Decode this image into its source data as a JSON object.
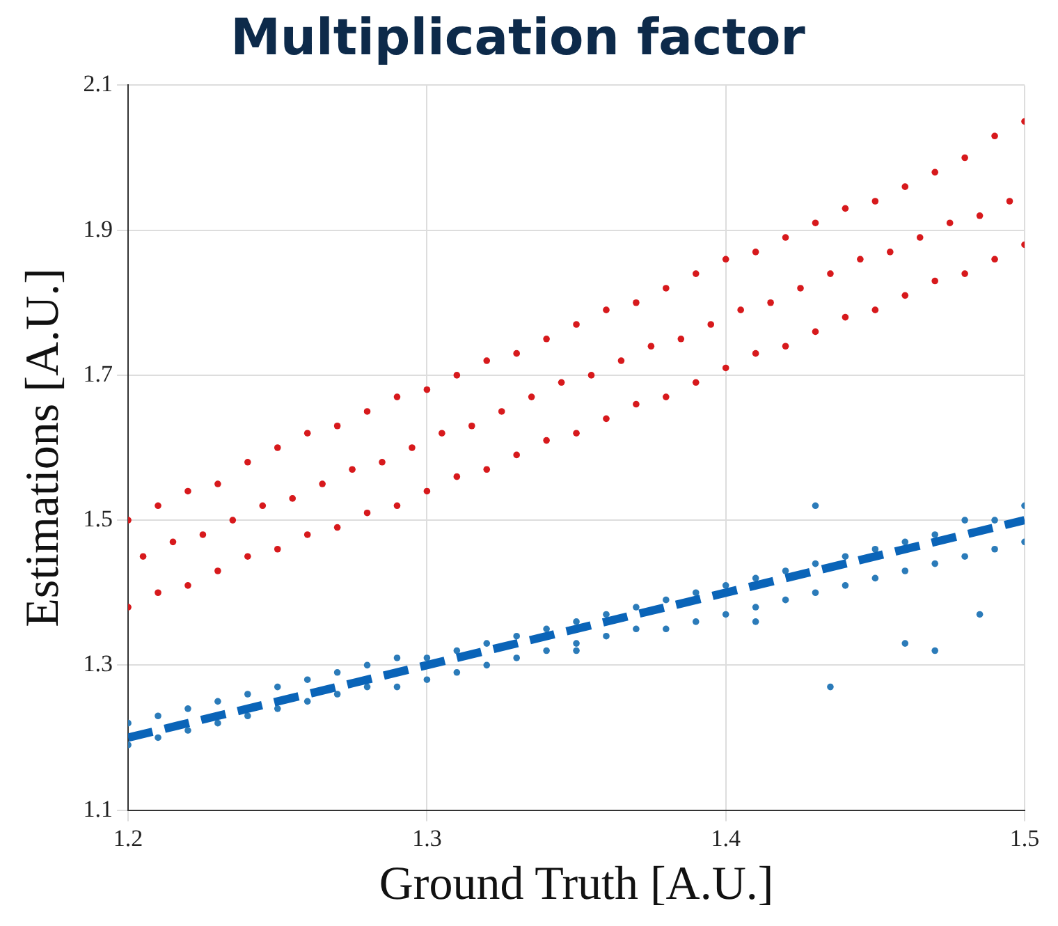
{
  "chart_data": {
    "type": "scatter",
    "title": "Multiplication factor",
    "xlabel": "Ground Truth [A.U.]",
    "ylabel": "Estimations [A.U.]",
    "xlim": [
      1.2,
      1.5
    ],
    "xticks": [
      1.2,
      1.3,
      1.4,
      1.5
    ],
    "ylim": [
      1.1,
      2.1
    ],
    "yticks": [
      1.1,
      1.3,
      1.5,
      1.7,
      1.9,
      2.1
    ],
    "grid": true,
    "legend": false,
    "marker": "circle",
    "series": [
      {
        "type": "scatter",
        "color": "#d7191c",
        "x": [
          1.2,
          1.21,
          1.22,
          1.23,
          1.24,
          1.25,
          1.26,
          1.27,
          1.28,
          1.29,
          1.3,
          1.31,
          1.32,
          1.33,
          1.34,
          1.35,
          1.36,
          1.37,
          1.38,
          1.39,
          1.4,
          1.41,
          1.42,
          1.43,
          1.44,
          1.45,
          1.46,
          1.47,
          1.48,
          1.49,
          1.5,
          1.2,
          1.21,
          1.22,
          1.23,
          1.24,
          1.25,
          1.26,
          1.27,
          1.28,
          1.29,
          1.3,
          1.31,
          1.32,
          1.33,
          1.34,
          1.35,
          1.36,
          1.37,
          1.38,
          1.39,
          1.4,
          1.41,
          1.42,
          1.43,
          1.44,
          1.45,
          1.46,
          1.47,
          1.48,
          1.49,
          1.5,
          1.205,
          1.215,
          1.225,
          1.235,
          1.245,
          1.255,
          1.265,
          1.275,
          1.285,
          1.295,
          1.305,
          1.315,
          1.325,
          1.335,
          1.345,
          1.355,
          1.365,
          1.375,
          1.385,
          1.395,
          1.405,
          1.415,
          1.425,
          1.435,
          1.445,
          1.455,
          1.465,
          1.475,
          1.485,
          1.495
        ],
        "values": [
          1.5,
          1.52,
          1.54,
          1.55,
          1.58,
          1.6,
          1.62,
          1.63,
          1.65,
          1.67,
          1.68,
          1.7,
          1.72,
          1.73,
          1.75,
          1.77,
          1.79,
          1.8,
          1.82,
          1.84,
          1.86,
          1.87,
          1.89,
          1.91,
          1.93,
          1.94,
          1.96,
          1.98,
          2.0,
          2.03,
          2.05,
          1.38,
          1.4,
          1.41,
          1.43,
          1.45,
          1.46,
          1.48,
          1.49,
          1.51,
          1.52,
          1.54,
          1.56,
          1.57,
          1.59,
          1.61,
          1.62,
          1.64,
          1.66,
          1.67,
          1.69,
          1.71,
          1.73,
          1.74,
          1.76,
          1.78,
          1.79,
          1.81,
          1.83,
          1.84,
          1.86,
          1.88,
          1.45,
          1.47,
          1.48,
          1.5,
          1.52,
          1.53,
          1.55,
          1.57,
          1.58,
          1.6,
          1.62,
          1.63,
          1.65,
          1.67,
          1.69,
          1.7,
          1.72,
          1.74,
          1.75,
          1.77,
          1.79,
          1.8,
          1.82,
          1.84,
          1.86,
          1.87,
          1.89,
          1.91,
          1.92,
          1.94
        ]
      },
      {
        "type": "scatter",
        "color": "#2b7bb9",
        "x": [
          1.2,
          1.21,
          1.22,
          1.23,
          1.24,
          1.25,
          1.26,
          1.27,
          1.28,
          1.29,
          1.3,
          1.31,
          1.32,
          1.33,
          1.34,
          1.35,
          1.36,
          1.37,
          1.38,
          1.39,
          1.4,
          1.41,
          1.42,
          1.43,
          1.44,
          1.45,
          1.46,
          1.47,
          1.48,
          1.49,
          1.5,
          1.2,
          1.21,
          1.22,
          1.23,
          1.24,
          1.25,
          1.26,
          1.27,
          1.28,
          1.29,
          1.3,
          1.31,
          1.32,
          1.33,
          1.34,
          1.35,
          1.36,
          1.37,
          1.38,
          1.39,
          1.4,
          1.41,
          1.42,
          1.43,
          1.44,
          1.45,
          1.46,
          1.47,
          1.48,
          1.49,
          1.5,
          1.435,
          1.46,
          1.47,
          1.35,
          1.41,
          1.485,
          1.43
        ],
        "values": [
          1.22,
          1.23,
          1.24,
          1.25,
          1.26,
          1.27,
          1.28,
          1.29,
          1.3,
          1.31,
          1.31,
          1.32,
          1.33,
          1.34,
          1.35,
          1.36,
          1.37,
          1.38,
          1.39,
          1.4,
          1.41,
          1.42,
          1.43,
          1.44,
          1.45,
          1.46,
          1.47,
          1.48,
          1.5,
          1.5,
          1.52,
          1.19,
          1.2,
          1.21,
          1.22,
          1.23,
          1.24,
          1.25,
          1.26,
          1.27,
          1.27,
          1.28,
          1.29,
          1.3,
          1.31,
          1.32,
          1.33,
          1.34,
          1.35,
          1.35,
          1.36,
          1.37,
          1.38,
          1.39,
          1.4,
          1.41,
          1.42,
          1.43,
          1.44,
          1.45,
          1.46,
          1.47,
          1.27,
          1.33,
          1.32,
          1.32,
          1.36,
          1.37,
          1.52
        ]
      },
      {
        "type": "line",
        "color": "#0a64b8",
        "line_style": "dashed",
        "marker": "none",
        "x": [
          1.2,
          1.5
        ],
        "values": [
          1.2,
          1.5
        ]
      }
    ]
  }
}
